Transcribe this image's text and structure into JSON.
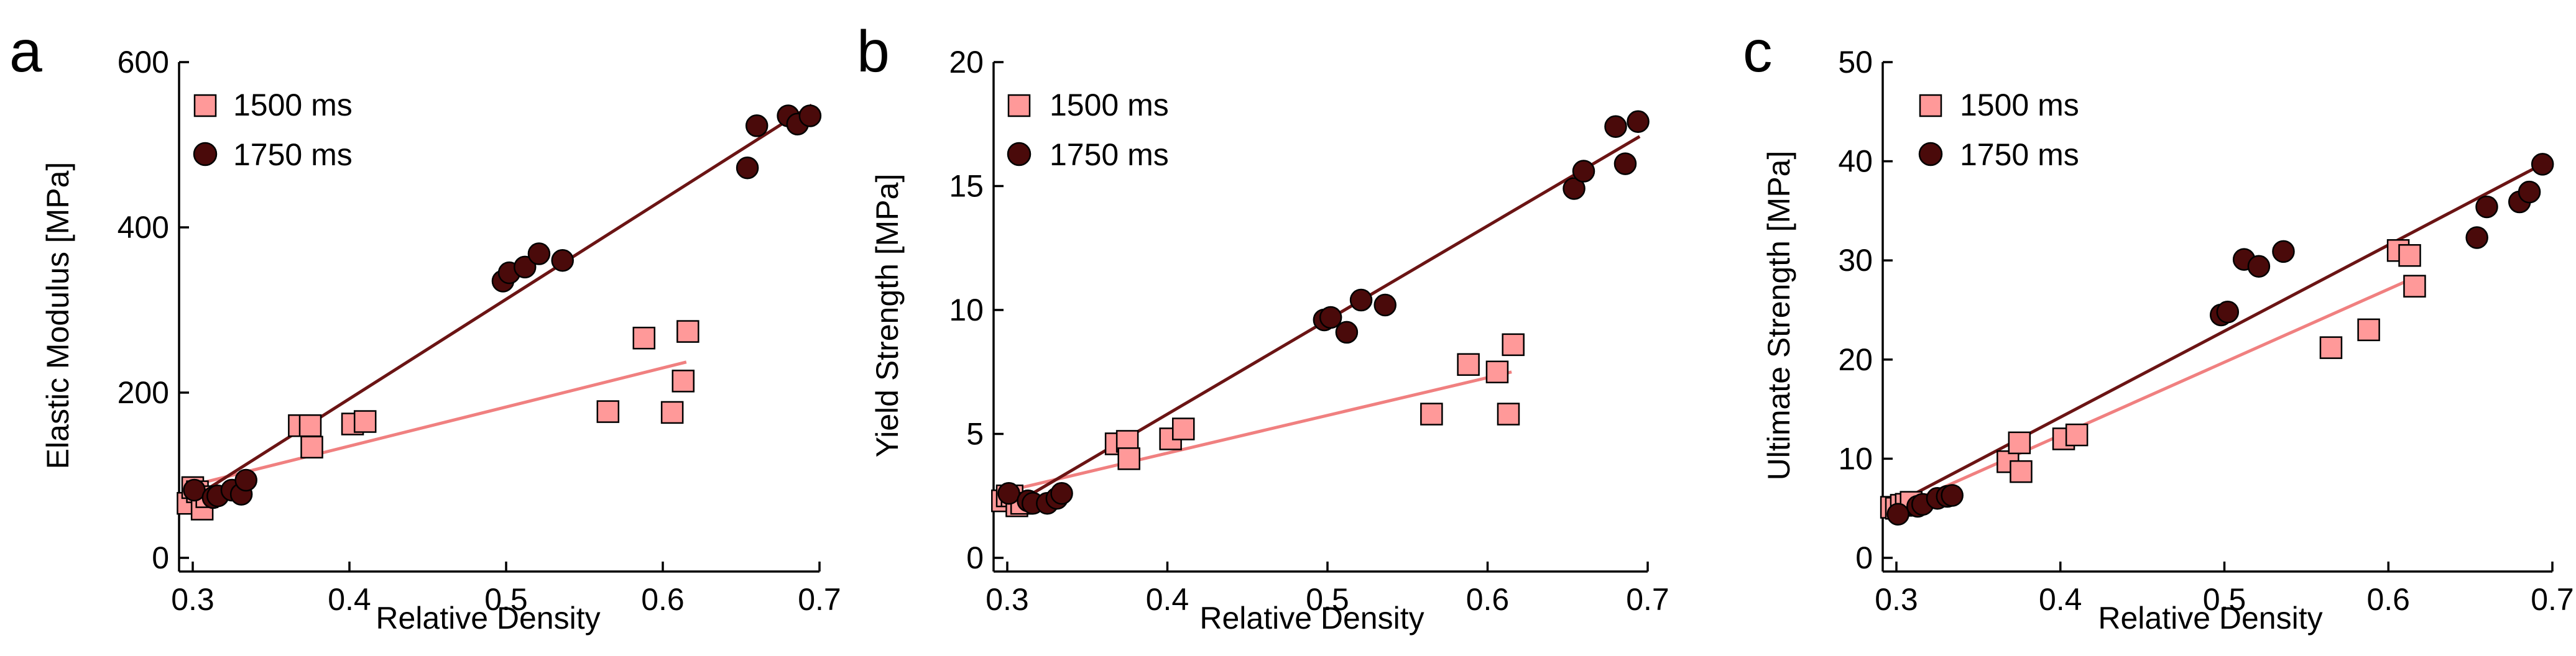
{
  "colors": {
    "s1500": "#ff9999",
    "s1500_line": "#f08080",
    "s1750": "#4a0a0a",
    "s1750_line": "#6b1414",
    "marker_stroke": "#000000"
  },
  "chart_data": [
    {
      "type": "scatter",
      "panel_label": "a",
      "xlabel": "Relative Density",
      "ylabel": "Elastic Modulus [MPa]",
      "xlim": [
        0.3,
        0.7
      ],
      "ylim": [
        0,
        600
      ],
      "xticks": [
        0.3,
        0.4,
        0.5,
        0.6,
        0.7
      ],
      "xtick_labels": [
        "0.3",
        "0.4",
        "0.5",
        "0.6",
        "0.7"
      ],
      "yticks": [
        0,
        200,
        400,
        600
      ],
      "ytick_labels": [
        "0",
        "200",
        "400",
        "600"
      ],
      "series": [
        {
          "name": "1500 ms",
          "marker": "square",
          "x": [
            0.297,
            0.3,
            0.303,
            0.306,
            0.309,
            0.368,
            0.375,
            0.376,
            0.402,
            0.41,
            0.565,
            0.588,
            0.606,
            0.613,
            0.616
          ],
          "y": [
            66,
            85,
            80,
            59,
            74,
            160,
            160,
            134,
            162,
            165,
            177,
            266,
            176,
            214,
            274
          ],
          "fit": [
            [
              0.3,
              88
            ],
            [
              0.615,
              237
            ]
          ]
        },
        {
          "name": "1750 ms",
          "marker": "circle",
          "x": [
            0.301,
            0.313,
            0.316,
            0.325,
            0.331,
            0.334,
            0.498,
            0.502,
            0.512,
            0.521,
            0.536,
            0.654,
            0.66,
            0.68,
            0.686,
            0.694
          ],
          "y": [
            82,
            73,
            75,
            82,
            77,
            94,
            335,
            345,
            352,
            368,
            360,
            472,
            523,
            535,
            525,
            535
          ],
          "fit": [
            [
              0.3,
              72
            ],
            [
              0.695,
              548
            ]
          ]
        }
      ]
    },
    {
      "type": "scatter",
      "panel_label": "b",
      "xlabel": "Relative Density",
      "ylabel": "Yield Strength [MPa]",
      "xlim": [
        0.3,
        0.7
      ],
      "ylim": [
        0,
        20
      ],
      "xticks": [
        0.3,
        0.4,
        0.5,
        0.6,
        0.7
      ],
      "xtick_labels": [
        "0.3",
        "0.4",
        "0.5",
        "0.6",
        "0.7"
      ],
      "yticks": [
        0,
        5,
        10,
        15,
        20
      ],
      "ytick_labels": [
        "0",
        "5",
        "10",
        "15",
        "20"
      ],
      "series": [
        {
          "name": "1500 ms",
          "marker": "square",
          "x": [
            0.297,
            0.3,
            0.303,
            0.306,
            0.309,
            0.368,
            0.375,
            0.376,
            0.402,
            0.41,
            0.565,
            0.588,
            0.606,
            0.613,
            0.616
          ],
          "y": [
            2.3,
            2.5,
            2.5,
            2.1,
            2.2,
            4.6,
            4.7,
            4.0,
            4.8,
            5.2,
            5.8,
            7.8,
            7.5,
            5.8,
            8.6
          ],
          "fit": [
            [
              0.3,
              2.7
            ],
            [
              0.615,
              7.5
            ]
          ]
        },
        {
          "name": "1750 ms",
          "marker": "circle",
          "x": [
            0.301,
            0.313,
            0.316,
            0.325,
            0.331,
            0.334,
            0.498,
            0.502,
            0.512,
            0.521,
            0.536,
            0.654,
            0.66,
            0.68,
            0.686,
            0.694
          ],
          "y": [
            2.6,
            2.3,
            2.2,
            2.2,
            2.4,
            2.6,
            9.6,
            9.7,
            9.1,
            10.4,
            10.2,
            14.9,
            15.6,
            17.4,
            15.9,
            17.6
          ],
          "fit": [
            [
              0.3,
              2.0
            ],
            [
              0.695,
              17.0
            ]
          ]
        }
      ]
    },
    {
      "type": "scatter",
      "panel_label": "c",
      "xlabel": "Relative Density",
      "ylabel": "Ultimate Strength [MPa]",
      "xlim": [
        0.3,
        0.7
      ],
      "ylim": [
        0,
        50
      ],
      "xticks": [
        0.3,
        0.4,
        0.5,
        0.6,
        0.7
      ],
      "xtick_labels": [
        "0.3",
        "0.4",
        "0.5",
        "0.6",
        "0.7"
      ],
      "yticks": [
        0,
        10,
        20,
        30,
        40,
        50
      ],
      "ytick_labels": [
        "0",
        "10",
        "20",
        "30",
        "40",
        "50"
      ],
      "series": [
        {
          "name": "1500 ms",
          "marker": "square",
          "x": [
            0.297,
            0.3,
            0.303,
            0.306,
            0.309,
            0.368,
            0.375,
            0.376,
            0.402,
            0.41,
            0.565,
            0.588,
            0.606,
            0.613,
            0.616
          ],
          "y": [
            5.1,
            5.0,
            5.3,
            5.4,
            5.6,
            9.7,
            11.6,
            8.7,
            12.0,
            12.4,
            21.2,
            23.0,
            31.0,
            30.5,
            27.4
          ],
          "fit": [
            [
              0.3,
              5.0
            ],
            [
              0.615,
              28.2
            ]
          ]
        },
        {
          "name": "1750 ms",
          "marker": "circle",
          "x": [
            0.301,
            0.313,
            0.316,
            0.325,
            0.331,
            0.334,
            0.498,
            0.502,
            0.512,
            0.521,
            0.536,
            0.654,
            0.66,
            0.68,
            0.686,
            0.694
          ],
          "y": [
            4.4,
            5.2,
            5.4,
            6.0,
            6.2,
            6.3,
            24.5,
            24.8,
            30.1,
            29.4,
            30.9,
            32.3,
            35.4,
            35.9,
            36.9,
            39.7
          ],
          "fit": [
            [
              0.3,
              5.5
            ],
            [
              0.695,
              39.8
            ]
          ]
        }
      ]
    }
  ]
}
